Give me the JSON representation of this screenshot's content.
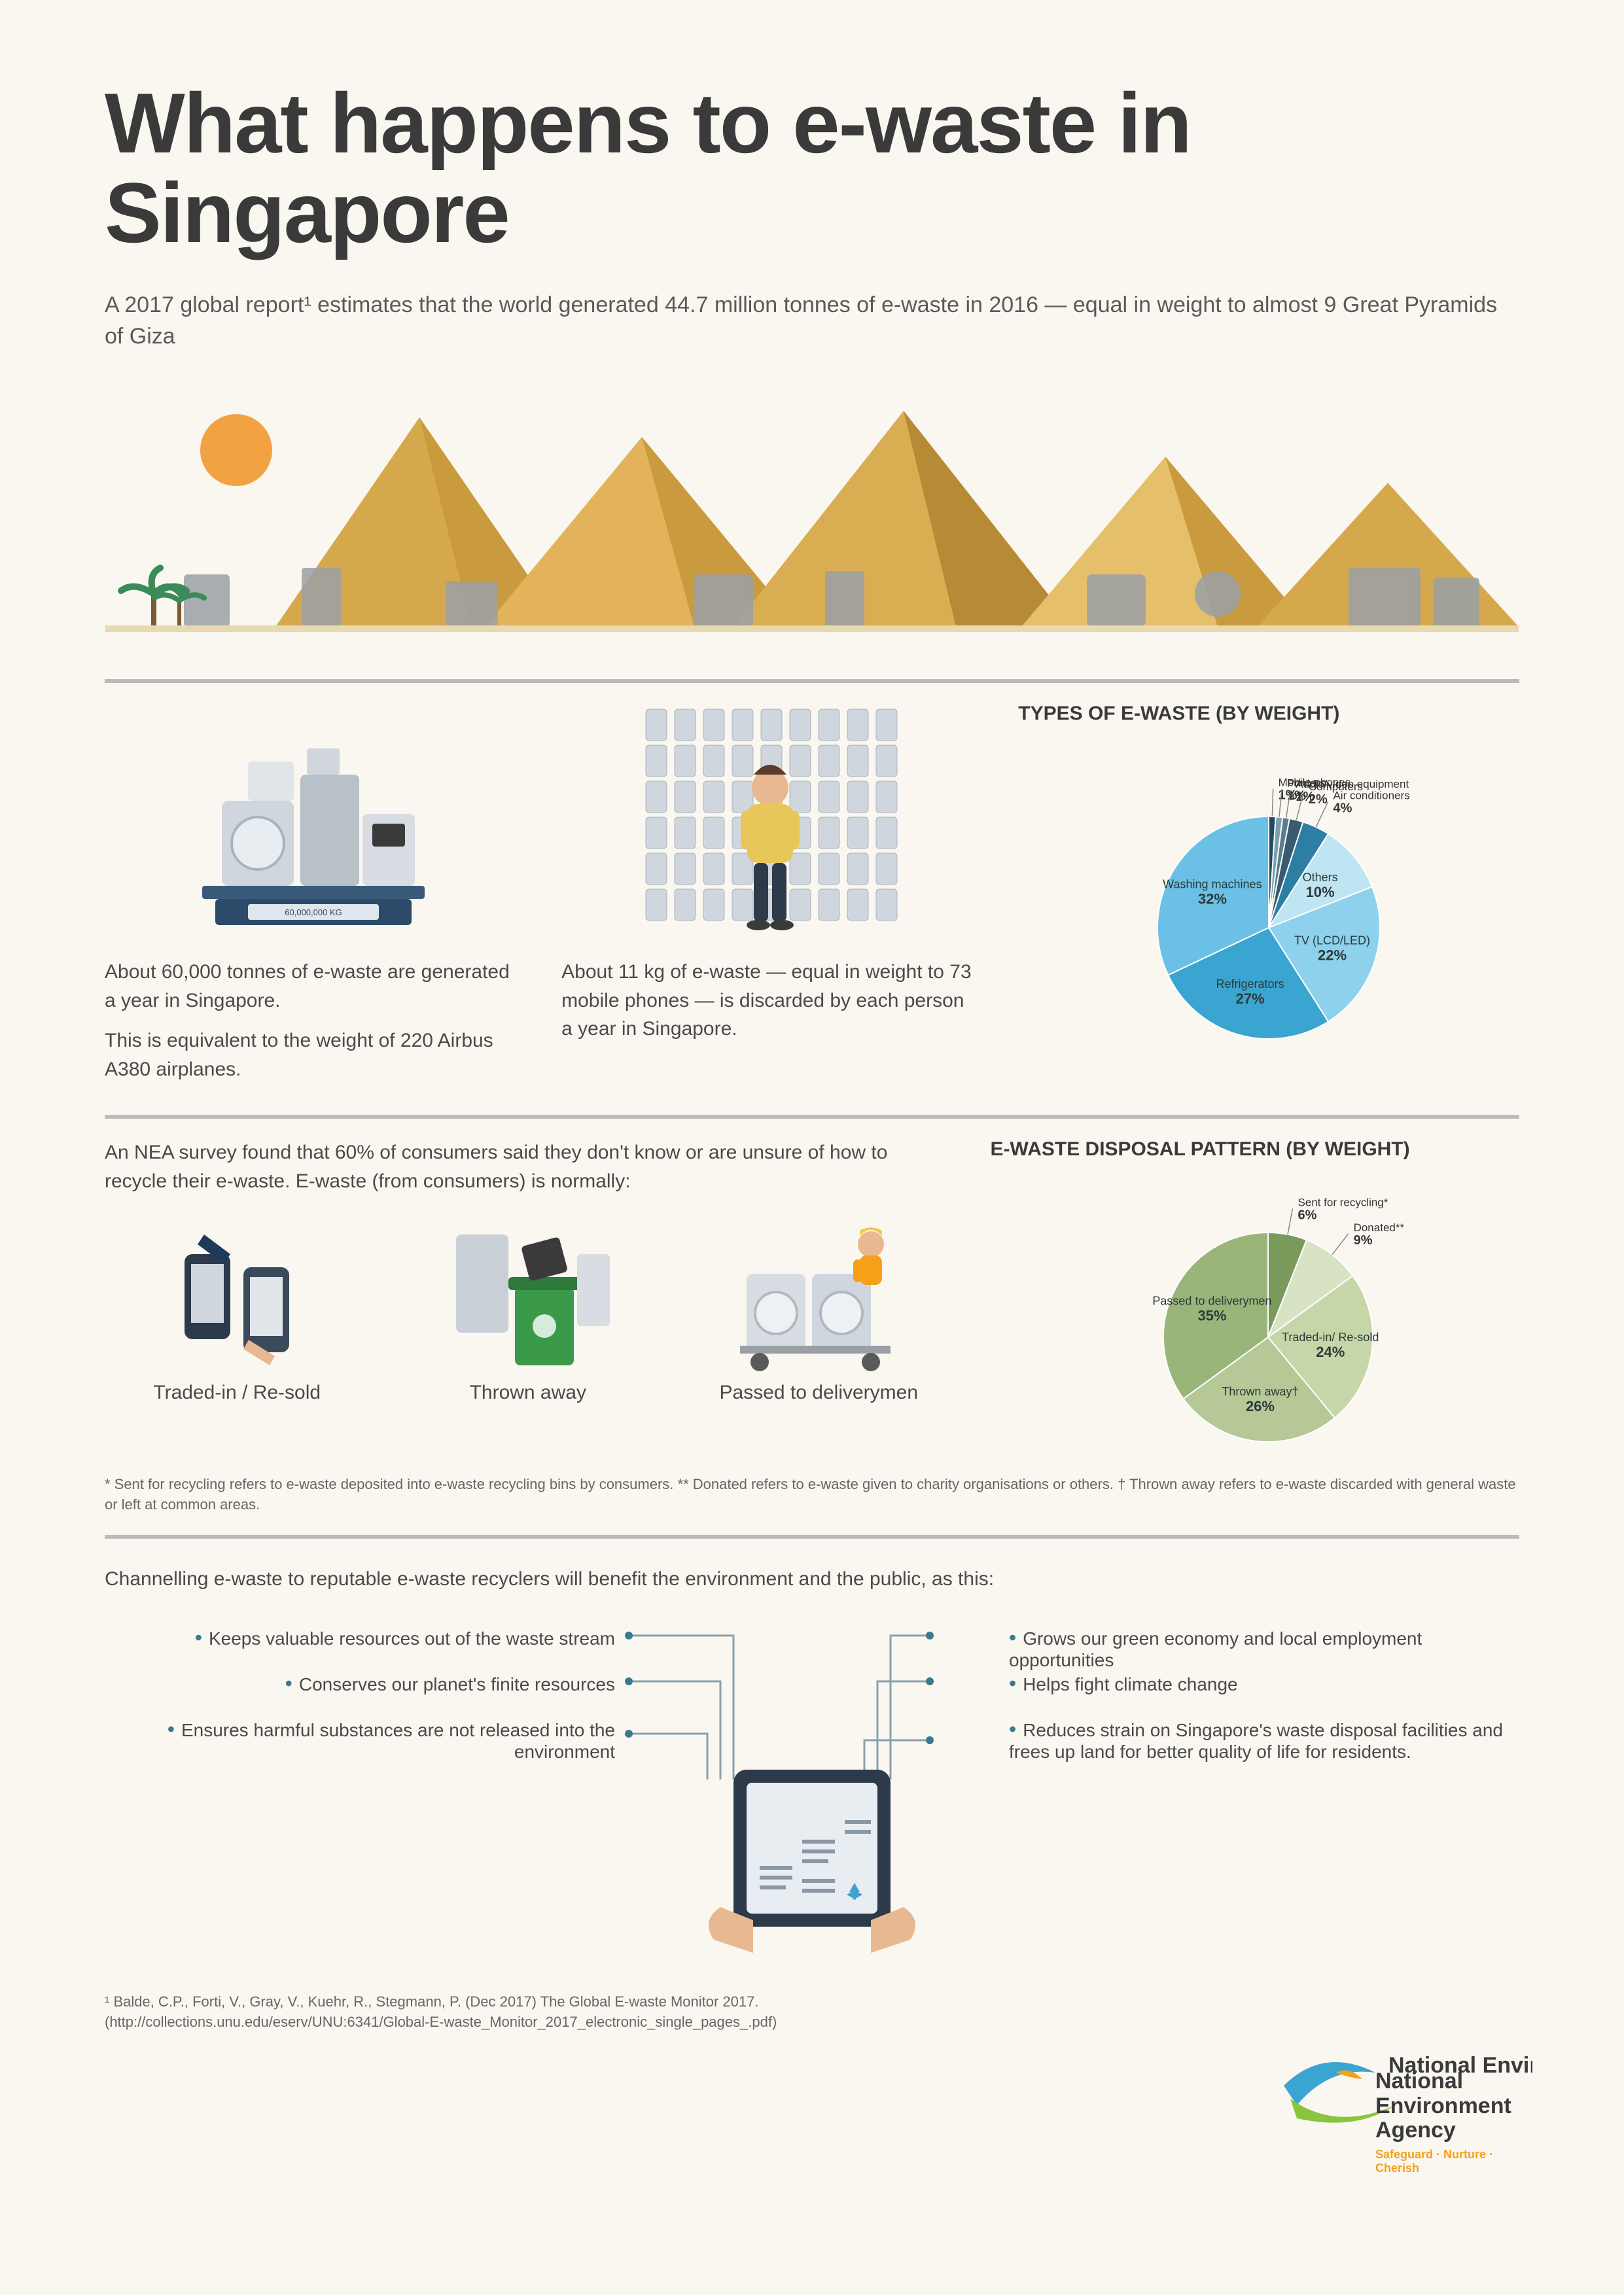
{
  "title": "What happens to e-waste in Singapore",
  "intro": "A 2017 global report¹ estimates that the world generated 44.7 million tonnes of e-waste in 2016 — equal in weight to almost 9 Great Pyramids of Giza",
  "hero": {
    "sun_color": "#f2a243",
    "pyramid_colors": [
      "#d6a84c",
      "#e2b35a",
      "#c99a3e",
      "#b78a35",
      "#e6bf6a"
    ],
    "sand_color": "#e8d9b0"
  },
  "stat1": {
    "illustration_label": "60,000,000 KG",
    "p1": "About 60,000 tonnes of e-waste are generated a year in Singapore.",
    "p2": "This is equivalent to the weight of 220 Airbus A380 airplanes."
  },
  "stat2": {
    "p1": "About 11 kg of e-waste — equal in weight to 73 mobile phones — is discarded by each person a year in Singapore."
  },
  "pie1": {
    "title": "TYPES OF E-WASTE (BY WEIGHT)",
    "slices": [
      {
        "label": "Washing machines",
        "pct": 32,
        "color": "#6ac0e5"
      },
      {
        "label": "Refrigerators",
        "pct": 27,
        "color": "#3aa5d0"
      },
      {
        "label": "TV (LCD/LED)",
        "pct": 22,
        "color": "#8dd1ec"
      },
      {
        "label": "Others",
        "pct": 10,
        "color": "#bfe5f3"
      },
      {
        "label": "Air conditioners",
        "pct": 4,
        "color": "#2c7fa3"
      },
      {
        "label": "Computers",
        "pct": 2,
        "color": "#3a5a72"
      },
      {
        "label": "Audio/video equipment",
        "pct": 1,
        "color": "#5a7d8c"
      },
      {
        "label": "Printers",
        "pct": 1,
        "color": "#7aa0b0"
      },
      {
        "label": "Mobile phones",
        "pct": 1,
        "color": "#1e4a60"
      }
    ]
  },
  "disposal": {
    "intro": "An NEA survey found that 60% of consumers said they don't know or are unsure of how to recycle their e-waste. E-waste (from consumers) is normally:",
    "items": [
      {
        "label": "Traded-in / Re-sold"
      },
      {
        "label": "Thrown away"
      },
      {
        "label": "Passed to deliverymen"
      }
    ],
    "footnote": "* Sent for recycling refers to e-waste deposited into e-waste recycling bins by consumers. ** Donated refers to e-waste given to charity organisations or others. † Thrown away refers to e-waste discarded with general waste or left at common areas."
  },
  "pie2": {
    "title": "E-WASTE DISPOSAL PATTERN (BY WEIGHT)",
    "slices": [
      {
        "label": "Passed to deliverymen",
        "pct": 35,
        "color": "#9ab57a"
      },
      {
        "label": "Thrown away†",
        "pct": 26,
        "color": "#b5c896"
      },
      {
        "label": "Traded-in/ Re-sold",
        "pct": 24,
        "color": "#c6d6a8"
      },
      {
        "label": "Donated**",
        "pct": 9,
        "color": "#d8e3c3"
      },
      {
        "label": "Sent for recycling*",
        "pct": 6,
        "color": "#7a9a5c"
      }
    ]
  },
  "benefits": {
    "intro": "Channelling e-waste to reputable e-waste recyclers will benefit the environment and the public, as this:",
    "left": [
      "Keeps valuable resources out of the waste stream",
      "Conserves our planet's finite resources",
      "Ensures harmful substances are not released into the environment"
    ],
    "right": [
      "Grows our green economy and local employment opportunities",
      "Helps fight climate change",
      "Reduces strain on Singapore's waste disposal facilities and frees up land for better quality of life for residents."
    ]
  },
  "reference": "¹ Balde, C.P., Forti, V., Gray, V., Kuehr, R., Stegmann, P. (Dec 2017) The Global E-waste Monitor 2017. (http://collections.unu.edu/eserv/UNU:6341/Global-E-waste_Monitor_2017_electronic_single_pages_.pdf)",
  "agency": {
    "name": "National Environment Agency",
    "tagline": "Safeguard · Nurture · Cherish",
    "colors": {
      "leaf1": "#3aa5d0",
      "leaf2": "#8bc53f",
      "accent": "#f6a01a"
    }
  }
}
